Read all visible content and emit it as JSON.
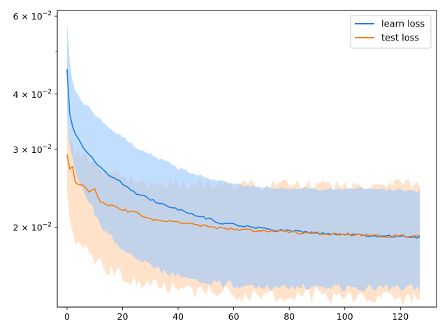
{
  "chart_data": {
    "type": "line",
    "title": "",
    "xlabel": "",
    "ylabel": "",
    "yscale": "log",
    "xlim": [
      -3.5,
      133
    ],
    "ylim": [
      0.0132,
      0.0618
    ],
    "grid": false,
    "legend": "top-right",
    "x_ticks": [
      0,
      20,
      40,
      60,
      80,
      100,
      120
    ],
    "x_tick_labels": [
      "0",
      "20",
      "40",
      "60",
      "80",
      "100",
      "120"
    ],
    "y_major_ticks": [
      {
        "value": 0.02,
        "mantissa": "2",
        "base": "× 10",
        "exp": "−2"
      },
      {
        "value": 0.03,
        "mantissa": "3",
        "base": "× 10",
        "exp": "−2"
      },
      {
        "value": 0.04,
        "mantissa": "4",
        "base": "× 10",
        "exp": "−2"
      },
      {
        "value": 0.06,
        "mantissa": "6",
        "base": "× 10",
        "exp": "−2"
      }
    ],
    "y_minor_ticks": [
      0.05
    ],
    "x_count": 128,
    "series": [
      {
        "name": "learn loss",
        "color": "#1f7fe0",
        "band_color": "#99c8ff",
        "key_x": [
          0,
          1,
          2,
          3,
          4,
          5,
          6,
          8,
          10,
          12,
          15,
          18,
          20,
          25,
          30,
          35,
          40,
          45,
          50,
          55,
          60,
          65,
          70,
          75,
          80,
          85,
          90,
          95,
          100,
          105,
          110,
          115,
          120,
          125,
          127
        ],
        "key_mean": [
          0.0455,
          0.036,
          0.0338,
          0.0325,
          0.0318,
          0.031,
          0.0302,
          0.0293,
          0.0282,
          0.0273,
          0.0263,
          0.0256,
          0.0251,
          0.0239,
          0.0231,
          0.0225,
          0.022,
          0.0214,
          0.021,
          0.0205,
          0.0203,
          0.0201,
          0.0199,
          0.0197,
          0.0196,
          0.0195,
          0.0194,
          0.0193,
          0.0192,
          0.0192,
          0.0191,
          0.0191,
          0.0191,
          0.019,
          0.019
        ],
        "key_upper": [
          0.0582,
          0.047,
          0.0425,
          0.041,
          0.04,
          0.039,
          0.0382,
          0.0372,
          0.036,
          0.035,
          0.0338,
          0.0326,
          0.032,
          0.0302,
          0.0292,
          0.0282,
          0.0272,
          0.0265,
          0.0259,
          0.0254,
          0.0251,
          0.0248,
          0.0247,
          0.0246,
          0.0245,
          0.0245,
          0.0244,
          0.0244,
          0.0244,
          0.0244,
          0.0243,
          0.0243,
          0.0243,
          0.0242,
          0.0242
        ],
        "key_lower": [
          0.0355,
          0.0305,
          0.0288,
          0.0272,
          0.0262,
          0.0252,
          0.0242,
          0.0228,
          0.0215,
          0.0204,
          0.0193,
          0.0185,
          0.0179,
          0.017,
          0.0164,
          0.0159,
          0.0156,
          0.0153,
          0.0151,
          0.0149,
          0.0148,
          0.0148,
          0.0147,
          0.0147,
          0.0147,
          0.0147,
          0.0146,
          0.0146,
          0.0146,
          0.0146,
          0.0146,
          0.0146,
          0.0146,
          0.0146,
          0.0146
        ]
      },
      {
        "name": "test loss",
        "color": "#f27f0e",
        "band_color": "#ffcb9d",
        "key_x": [
          0,
          1,
          2,
          3,
          4,
          5,
          6,
          8,
          10,
          12,
          15,
          18,
          20,
          25,
          30,
          35,
          40,
          45,
          50,
          55,
          60,
          65,
          70,
          75,
          80,
          85,
          90,
          95,
          100,
          105,
          110,
          115,
          120,
          125,
          127
        ],
        "key_mean": [
          0.0292,
          0.0272,
          0.0275,
          0.0252,
          0.0249,
          0.0248,
          0.025,
          0.0241,
          0.0243,
          0.0228,
          0.0225,
          0.0223,
          0.0219,
          0.0215,
          0.0209,
          0.0207,
          0.0205,
          0.0203,
          0.0201,
          0.0199,
          0.0198,
          0.0197,
          0.0196,
          0.0196,
          0.0195,
          0.0194,
          0.0194,
          0.0193,
          0.0193,
          0.0192,
          0.0192,
          0.0191,
          0.0191,
          0.0191,
          0.019
        ],
        "key_upper": [
          0.0352,
          0.0315,
          0.031,
          0.0295,
          0.0298,
          0.029,
          0.0292,
          0.0285,
          0.0282,
          0.0272,
          0.0268,
          0.0262,
          0.026,
          0.0255,
          0.025,
          0.0251,
          0.025,
          0.025,
          0.025,
          0.0249,
          0.0249,
          0.025,
          0.0248,
          0.0249,
          0.025,
          0.0249,
          0.0249,
          0.0249,
          0.0248,
          0.025,
          0.0249,
          0.025,
          0.0251,
          0.025,
          0.0248
        ],
        "key_lower": [
          0.0242,
          0.0205,
          0.0196,
          0.0185,
          0.0183,
          0.0181,
          0.018,
          0.0175,
          0.017,
          0.0166,
          0.0161,
          0.0158,
          0.0155,
          0.0151,
          0.0148,
          0.0146,
          0.0145,
          0.0143,
          0.0142,
          0.0142,
          0.0141,
          0.0141,
          0.0141,
          0.014,
          0.014,
          0.014,
          0.014,
          0.0139,
          0.0139,
          0.0139,
          0.0139,
          0.0138,
          0.0138,
          0.0138,
          0.0137
        ]
      }
    ]
  }
}
